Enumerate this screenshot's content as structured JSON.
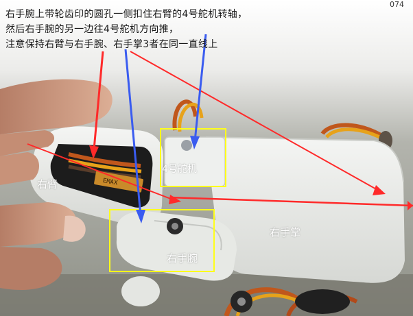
{
  "page_number": "074",
  "instructions": [
    "右手腕上带轮齿印的圆孔一侧扣住右臂的4号舵机转轴，",
    "然后右手腕的另一边往4号舵机方向推，",
    "注意保持右臂与右手腕、右手掌3者在同一直线上"
  ],
  "labels": {
    "right_arm": "右臂",
    "servo_4": "4号舵机",
    "right_palm": "右手掌",
    "right_wrist": "右手腕"
  },
  "servo_sticker_text": "EMAX",
  "colors": {
    "annotation_red": "#ff2a2a",
    "annotation_blue": "#3a5cf0",
    "highlight_yellow": "#ffff1a",
    "part_white": "#e9ebe9",
    "skin": "#cf9f87"
  }
}
